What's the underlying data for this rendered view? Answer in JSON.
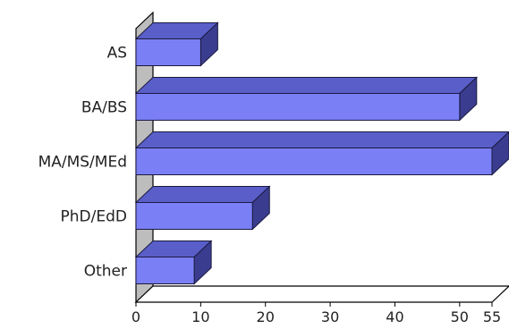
{
  "chart_data": {
    "type": "bar",
    "orientation": "horizontal",
    "three_d": true,
    "categories": [
      "AS",
      "BA/BS",
      "MA/MS/MEd",
      "PhD/EdD",
      "Other"
    ],
    "values": [
      10,
      50,
      55,
      18,
      9
    ],
    "xlim": [
      0,
      55
    ],
    "xticks": [
      0,
      10,
      20,
      30,
      40,
      50,
      55
    ],
    "title": "",
    "xlabel": "",
    "ylabel": "",
    "grid": false,
    "legend": "none",
    "colors": {
      "bar_front": "#7b7ff5",
      "bar_top": "#5a5ec8",
      "bar_side": "#3a3d8f",
      "bar_edge": "#1a1a40",
      "wall": "#bdbdbd",
      "floor": "#ffffff",
      "axis": "#000000"
    }
  }
}
